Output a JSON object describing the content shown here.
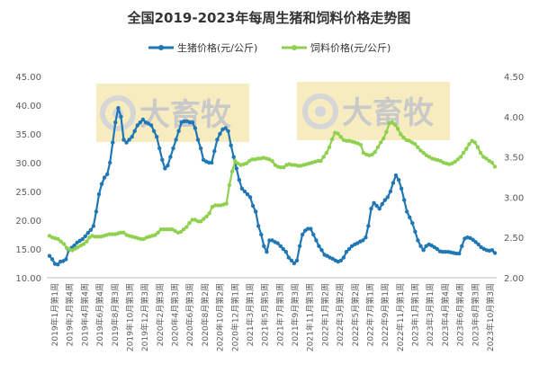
{
  "chart_data": {
    "type": "line",
    "title": "全国2019-2023年每周生猪和饲料价格走势图",
    "watermark_text": "大畜牧",
    "legend_position": "top",
    "grid": false,
    "y_left": {
      "ylim": [
        10,
        45
      ],
      "ticks": [
        "10.00",
        "15.00",
        "20.00",
        "25.00",
        "30.00",
        "35.00",
        "40.00",
        "45.00"
      ]
    },
    "y_right": {
      "ylim": [
        2,
        4.5
      ],
      "ticks": [
        "2.00",
        "2.50",
        "3.00",
        "3.50",
        "4.00",
        "4.50"
      ]
    },
    "x_tick_labels": [
      "2019年1月第1周",
      "2019年2月第4周",
      "2019年4月第4周",
      "2019年6月第4周",
      "2019年8月第3周",
      "2019年10月第3周",
      "2019年12月第3周",
      "2020年2月第3周",
      "2020年4月第3周",
      "2020年6月第3周",
      "2020年8月第2周",
      "2020年10月第2周",
      "2020年12月第1周",
      "2021年3月第1周",
      "2021年5月第5周",
      "2021年7月第3周",
      "2021年9月第3周",
      "2021年11月第3周",
      "2022年1月第2周",
      "2022年3月第2周",
      "2022年5月第2周",
      "2022年7月第1周",
      "2022年9月第1周",
      "2022年11月第1周",
      "2023年1月第1周",
      "2023年3月第1周",
      "2023年4月第4周",
      "2023年6月第4周",
      "2023年8月第3周",
      "2023年10月第3周"
    ],
    "series": [
      {
        "name": "生猪价格(元/公斤)",
        "axis": "left",
        "color": "#1F77B4",
        "values": [
          13.8,
          13.2,
          12.4,
          12.3,
          12.8,
          12.9,
          13.2,
          14.8,
          15.2,
          15.6,
          16.1,
          16.4,
          16.7,
          17.2,
          17.8,
          18.3,
          19.0,
          21.5,
          24.5,
          26.3,
          27.4,
          28.0,
          30.0,
          33.5,
          37.0,
          39.5,
          38.0,
          34.0,
          33.5,
          34.0,
          34.5,
          35.5,
          36.5,
          37.0,
          37.5,
          37.0,
          36.8,
          36.5,
          35.5,
          34.5,
          32.5,
          30.5,
          29.0,
          29.5,
          31.0,
          32.5,
          34.0,
          35.5,
          37.0,
          37.2,
          37.2,
          37.0,
          37.0,
          36.0,
          34.0,
          32.5,
          30.5,
          30.2,
          30.0,
          30.0,
          32.0,
          34.0,
          35.0,
          35.8,
          36.0,
          35.5,
          33.0,
          31.0,
          29.0,
          27.0,
          25.5,
          25.0,
          24.5,
          24.0,
          22.5,
          21.5,
          19.0,
          17.5,
          15.5,
          14.5,
          16.5,
          16.5,
          16.2,
          16.0,
          15.5,
          15.0,
          14.5,
          13.5,
          13.0,
          12.5,
          13.0,
          15.5,
          17.5,
          18.2,
          18.5,
          18.5,
          17.5,
          16.5,
          15.5,
          14.8,
          14.0,
          13.8,
          13.5,
          13.3,
          13.0,
          12.8,
          13.0,
          13.5,
          14.5,
          15.0,
          15.5,
          15.8,
          16.0,
          16.3,
          16.5,
          17.0,
          19.0,
          22.0,
          23.0,
          22.5,
          22.0,
          22.8,
          23.5,
          24.0,
          25.0,
          26.5,
          27.8,
          27.0,
          25.5,
          23.5,
          21.5,
          20.5,
          19.5,
          18.0,
          16.5,
          15.5,
          14.8,
          15.5,
          15.8,
          15.6,
          15.3,
          15.0,
          14.6,
          14.5,
          14.5,
          14.5,
          14.4,
          14.3,
          14.2,
          14.2,
          15.5,
          16.8,
          17.0,
          16.9,
          16.6,
          16.2,
          15.8,
          15.3,
          15.0,
          14.8,
          14.7,
          14.8,
          14.3
        ]
      },
      {
        "name": "饲料价格(元/公斤)",
        "axis": "right",
        "color": "#8FD14F",
        "values": [
          2.52,
          2.5,
          2.49,
          2.48,
          2.45,
          2.42,
          2.37,
          2.35,
          2.34,
          2.36,
          2.38,
          2.4,
          2.42,
          2.45,
          2.5,
          2.52,
          2.51,
          2.51,
          2.51,
          2.52,
          2.53,
          2.54,
          2.54,
          2.54,
          2.55,
          2.56,
          2.56,
          2.53,
          2.52,
          2.51,
          2.5,
          2.49,
          2.48,
          2.48,
          2.5,
          2.51,
          2.52,
          2.53,
          2.56,
          2.6,
          2.6,
          2.6,
          2.6,
          2.6,
          2.58,
          2.56,
          2.57,
          2.6,
          2.63,
          2.68,
          2.72,
          2.72,
          2.7,
          2.7,
          2.73,
          2.76,
          2.8,
          2.88,
          2.9,
          2.9,
          2.9,
          2.91,
          2.92,
          3.15,
          3.32,
          3.45,
          3.42,
          3.4,
          3.41,
          3.42,
          3.45,
          3.47,
          3.47,
          3.48,
          3.48,
          3.49,
          3.48,
          3.47,
          3.45,
          3.4,
          3.38,
          3.37,
          3.37,
          3.4,
          3.41,
          3.4,
          3.4,
          3.39,
          3.39,
          3.4,
          3.41,
          3.42,
          3.43,
          3.44,
          3.45,
          3.45,
          3.5,
          3.55,
          3.62,
          3.72,
          3.8,
          3.79,
          3.75,
          3.71,
          3.7,
          3.7,
          3.69,
          3.68,
          3.67,
          3.65,
          3.55,
          3.53,
          3.52,
          3.53,
          3.56,
          3.62,
          3.68,
          3.73,
          3.81,
          3.92,
          3.93,
          3.9,
          3.85,
          3.78,
          3.74,
          3.71,
          3.7,
          3.68,
          3.66,
          3.62,
          3.58,
          3.55,
          3.52,
          3.5,
          3.48,
          3.47,
          3.46,
          3.45,
          3.43,
          3.42,
          3.41,
          3.42,
          3.44,
          3.47,
          3.5,
          3.55,
          3.6,
          3.66,
          3.7,
          3.68,
          3.62,
          3.55,
          3.5,
          3.48,
          3.45,
          3.43,
          3.38
        ]
      }
    ]
  }
}
